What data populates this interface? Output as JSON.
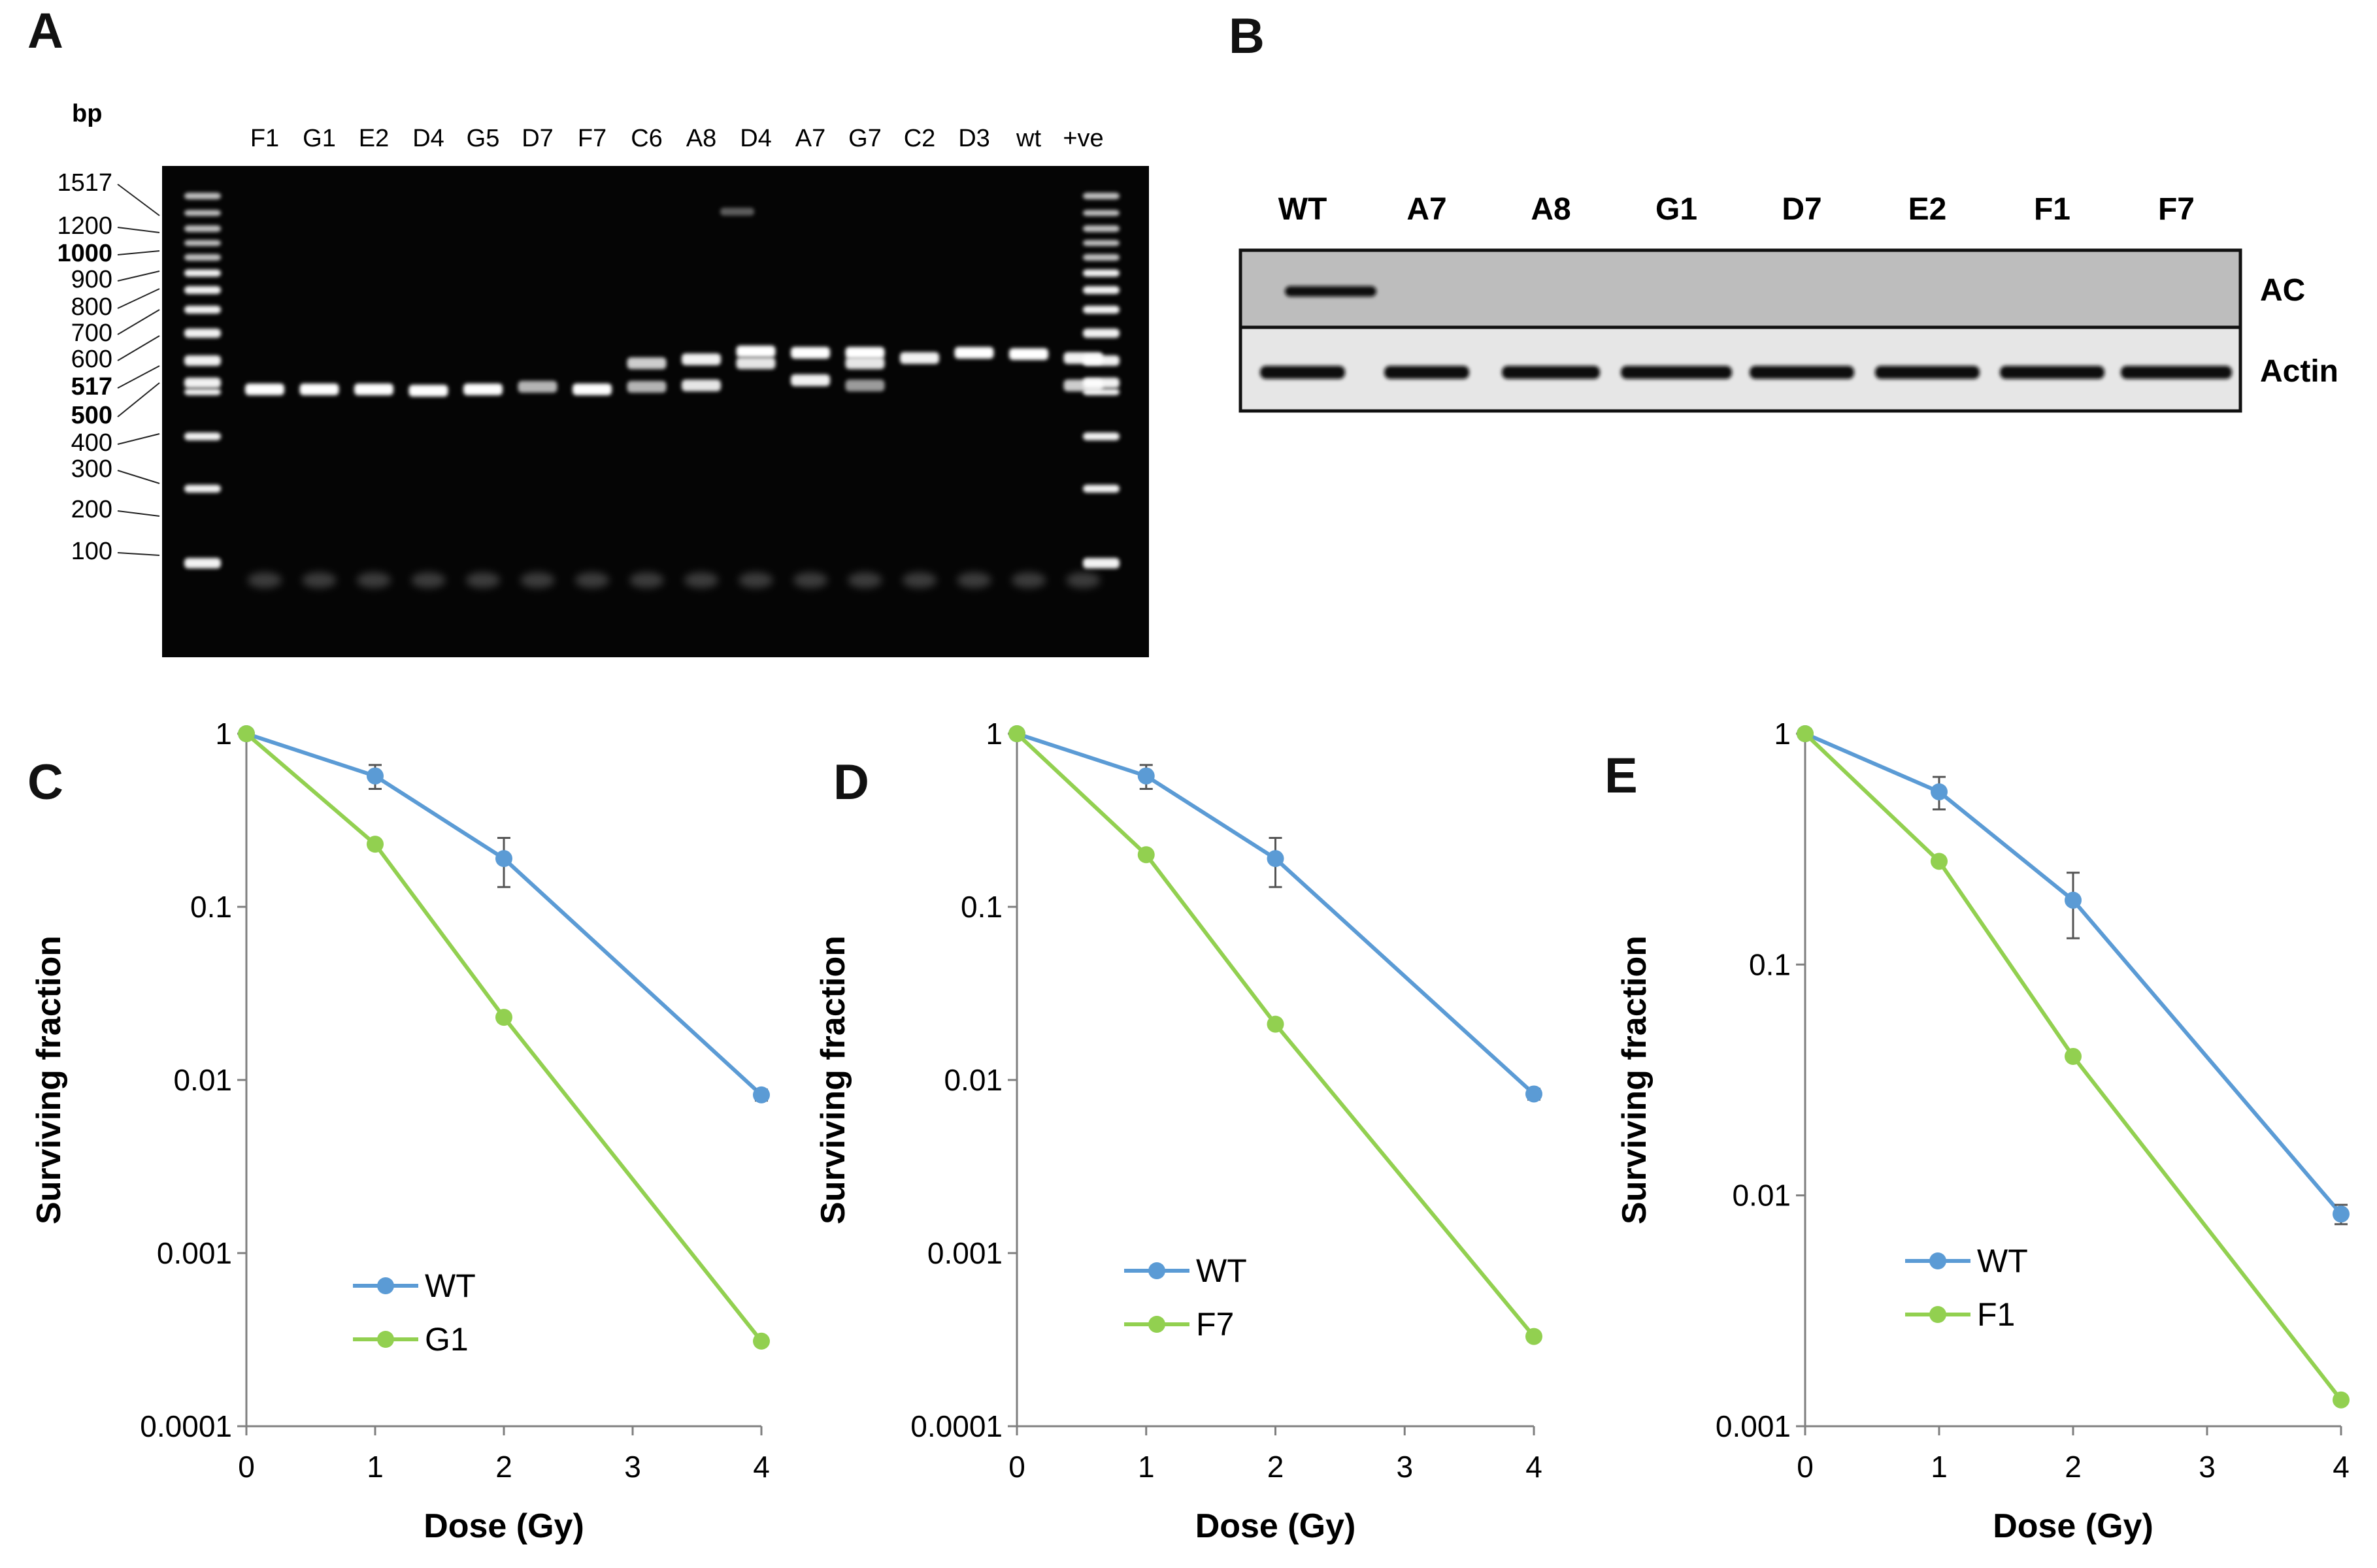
{
  "panels": {
    "A": {
      "letter": "A",
      "bp_label": "bp",
      "lanes": [
        "F1",
        "G1",
        "E2",
        "D4",
        "G5",
        "D7",
        "F7",
        "C6",
        "A8",
        "D4",
        "A7",
        "G7",
        "C2",
        "D3",
        "wt",
        "+ve"
      ],
      "ladder": [
        {
          "label": "1517",
          "bold": false
        },
        {
          "label": "1200",
          "bold": false
        },
        {
          "label": "1000",
          "bold": true
        },
        {
          "label": "900",
          "bold": false
        },
        {
          "label": "800",
          "bold": false
        },
        {
          "label": "700",
          "bold": false
        },
        {
          "label": "600",
          "bold": false
        },
        {
          "label": "517",
          "bold": true
        },
        {
          "label": "500",
          "bold": true
        },
        {
          "label": "400",
          "bold": false
        },
        {
          "label": "300",
          "bold": false
        },
        {
          "label": "200",
          "bold": false
        },
        {
          "label": "100",
          "bold": false
        }
      ]
    },
    "B": {
      "letter": "B",
      "lanes": [
        "WT",
        "A7",
        "A8",
        "G1",
        "D7",
        "E2",
        "F1",
        "F7"
      ],
      "rows": [
        "AC",
        "Actin"
      ]
    },
    "C": {
      "letter": "C"
    },
    "D": {
      "letter": "D"
    },
    "E": {
      "letter": "E"
    }
  },
  "colors": {
    "wt_series": "#5B9BD5",
    "mutant_series": "#92D050",
    "gel_bg": "#050505",
    "blot_bg_ac": "#bdbdbd",
    "blot_bg_actin": "#e6e6e6"
  },
  "chart_data": [
    {
      "panel": "C",
      "type": "line",
      "yscale": "log",
      "xlabel": "Dose (Gy)",
      "ylabel": "Surviving fraction",
      "xlim": [
        0,
        4
      ],
      "ylim": [
        0.0001,
        1
      ],
      "xticks": [
        "0",
        "1",
        "2",
        "3",
        "4"
      ],
      "yticks": [
        "1",
        "0.1",
        "0.01",
        "0.001",
        "0.0001"
      ],
      "legend_position": "bottom-left",
      "series": [
        {
          "name": "WT",
          "x": [
            0,
            1,
            2,
            4
          ],
          "y": [
            1,
            0.57,
            0.19,
            0.0082
          ],
          "err": [
            0,
            0.09,
            0.06,
            0.0006
          ]
        },
        {
          "name": "G1",
          "x": [
            0,
            1,
            2,
            4
          ],
          "y": [
            1,
            0.23,
            0.023,
            0.00031
          ]
        }
      ]
    },
    {
      "panel": "D",
      "type": "line",
      "yscale": "log",
      "xlabel": "Dose (Gy)",
      "ylabel": "Surviving fraction",
      "xlim": [
        0,
        4
      ],
      "ylim": [
        0.0001,
        1
      ],
      "xticks": [
        "0",
        "1",
        "2",
        "3",
        "4"
      ],
      "yticks": [
        "1",
        "0.1",
        "0.01",
        "0.001",
        "0.0001"
      ],
      "legend_position": "bottom-left",
      "series": [
        {
          "name": "WT",
          "x": [
            0,
            1,
            2,
            4
          ],
          "y": [
            1,
            0.57,
            0.19,
            0.0083
          ],
          "err": [
            0,
            0.09,
            0.06,
            0.0006
          ]
        },
        {
          "name": "F7",
          "x": [
            0,
            1,
            2,
            4
          ],
          "y": [
            1,
            0.2,
            0.021,
            0.00033
          ]
        }
      ]
    },
    {
      "panel": "E",
      "type": "line",
      "yscale": "log",
      "xlabel": "Dose (Gy)",
      "ylabel": "Surviving fraction",
      "xlim": [
        0,
        4
      ],
      "ylim": [
        0.001,
        1
      ],
      "xticks": [
        "0",
        "1",
        "2",
        "3",
        "4"
      ],
      "yticks": [
        "1",
        "0.1",
        "0.01",
        "0.001"
      ],
      "legend_position": "bottom-left",
      "series": [
        {
          "name": "WT",
          "x": [
            0,
            1,
            2,
            4
          ],
          "y": [
            1,
            0.56,
            0.19,
            0.0083
          ],
          "err": [
            0,
            0.09,
            0.06,
            0.0008
          ]
        },
        {
          "name": "F1",
          "x": [
            0,
            1,
            2,
            4
          ],
          "y": [
            1,
            0.28,
            0.04,
            0.0013
          ]
        }
      ]
    }
  ]
}
